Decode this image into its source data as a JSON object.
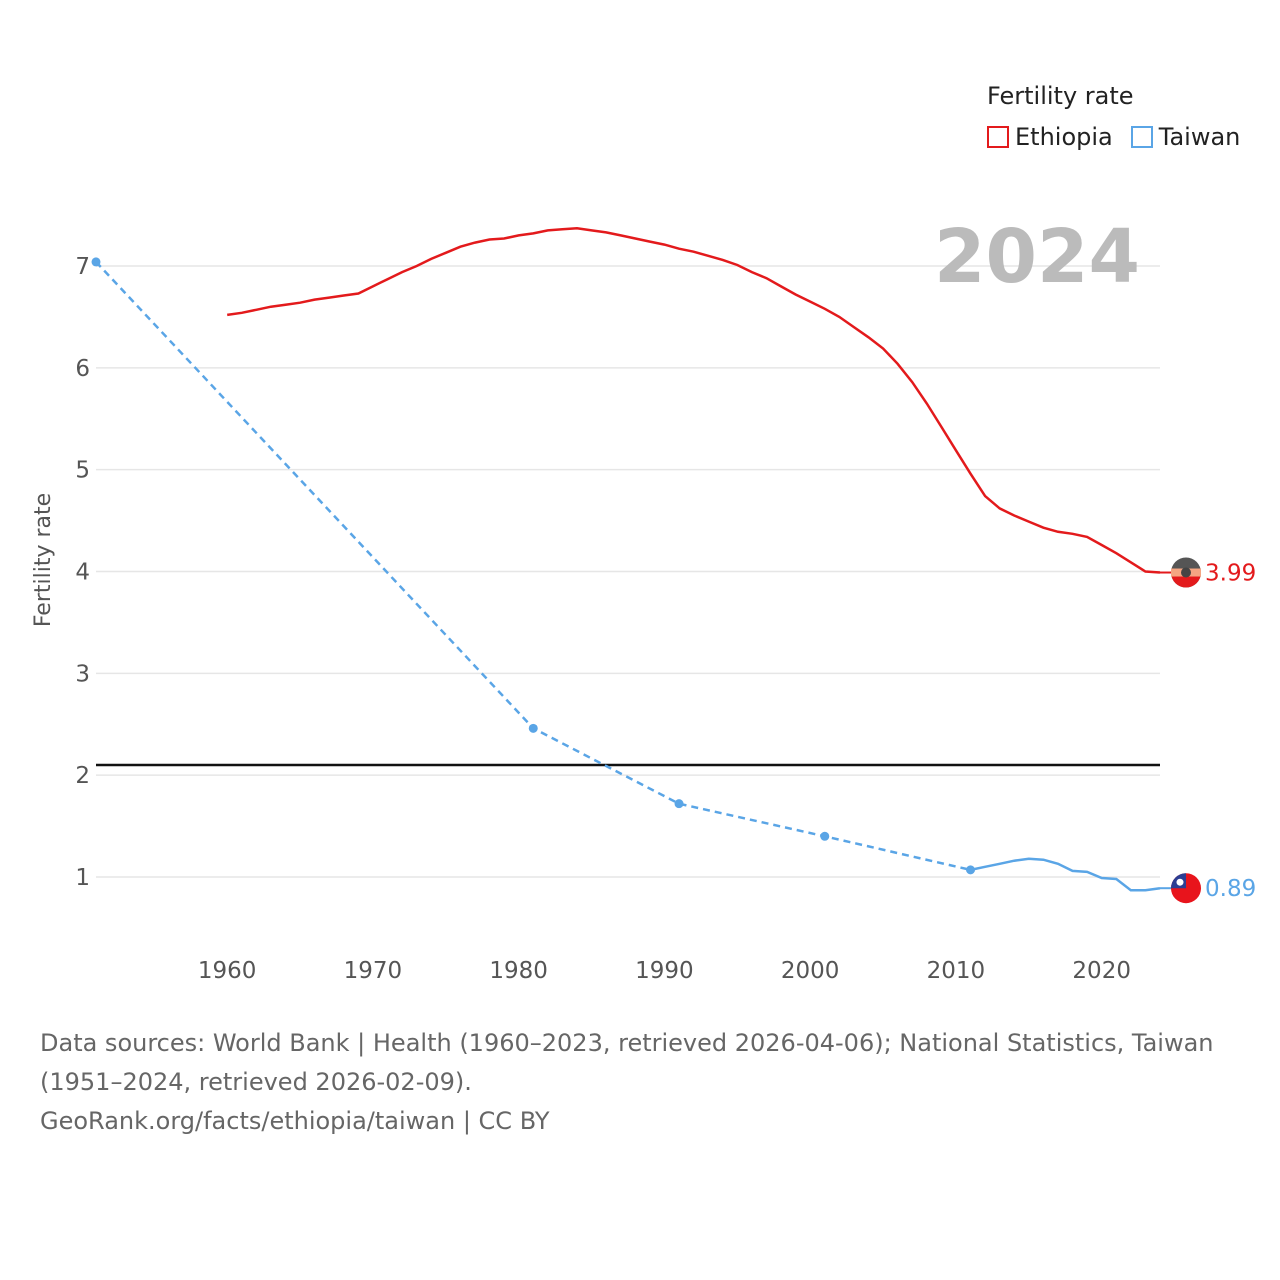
{
  "legend": {
    "title": "Fertility rate",
    "items": [
      {
        "label": "Ethiopia",
        "color": "#e31a1c"
      },
      {
        "label": "Taiwan",
        "color": "#5aa5e6"
      }
    ]
  },
  "chart_data": {
    "type": "line",
    "year_label": "2024",
    "ylabel": "Fertility rate",
    "xlim": [
      1951,
      2024
    ],
    "ylim": [
      0.5,
      7.5
    ],
    "x_ticks": [
      1960,
      1970,
      1980,
      1990,
      2000,
      2010,
      2020
    ],
    "y_ticks": [
      1,
      2,
      3,
      4,
      5,
      6,
      7
    ],
    "reference_line": {
      "value": 2.1,
      "color": "#111111"
    },
    "series": [
      {
        "name": "Ethiopia",
        "color": "#e31a1c",
        "end_label": "3.99",
        "points": [
          [
            1960,
            6.52
          ],
          [
            1961,
            6.54
          ],
          [
            1962,
            6.57
          ],
          [
            1963,
            6.6
          ],
          [
            1964,
            6.62
          ],
          [
            1965,
            6.64
          ],
          [
            1966,
            6.67
          ],
          [
            1967,
            6.69
          ],
          [
            1968,
            6.71
          ],
          [
            1969,
            6.73
          ],
          [
            1970,
            6.8
          ],
          [
            1971,
            6.87
          ],
          [
            1972,
            6.94
          ],
          [
            1973,
            7.0
          ],
          [
            1974,
            7.07
          ],
          [
            1975,
            7.13
          ],
          [
            1976,
            7.19
          ],
          [
            1977,
            7.23
          ],
          [
            1978,
            7.26
          ],
          [
            1979,
            7.27
          ],
          [
            1980,
            7.3
          ],
          [
            1981,
            7.32
          ],
          [
            1982,
            7.35
          ],
          [
            1983,
            7.36
          ],
          [
            1984,
            7.37
          ],
          [
            1985,
            7.35
          ],
          [
            1986,
            7.33
          ],
          [
            1987,
            7.3
          ],
          [
            1988,
            7.27
          ],
          [
            1989,
            7.24
          ],
          [
            1990,
            7.21
          ],
          [
            1991,
            7.17
          ],
          [
            1992,
            7.14
          ],
          [
            1993,
            7.1
          ],
          [
            1994,
            7.06
          ],
          [
            1995,
            7.01
          ],
          [
            1996,
            6.94
          ],
          [
            1997,
            6.88
          ],
          [
            1998,
            6.8
          ],
          [
            1999,
            6.72
          ],
          [
            2000,
            6.65
          ],
          [
            2001,
            6.58
          ],
          [
            2002,
            6.5
          ],
          [
            2003,
            6.4
          ],
          [
            2004,
            6.3
          ],
          [
            2005,
            6.19
          ],
          [
            2006,
            6.04
          ],
          [
            2007,
            5.86
          ],
          [
            2008,
            5.65
          ],
          [
            2009,
            5.42
          ],
          [
            2010,
            5.19
          ],
          [
            2011,
            4.96
          ],
          [
            2012,
            4.74
          ],
          [
            2013,
            4.62
          ],
          [
            2014,
            4.55
          ],
          [
            2015,
            4.49
          ],
          [
            2016,
            4.43
          ],
          [
            2017,
            4.39
          ],
          [
            2018,
            4.37
          ],
          [
            2019,
            4.34
          ],
          [
            2020,
            4.26
          ],
          [
            2021,
            4.18
          ],
          [
            2022,
            4.09
          ],
          [
            2023,
            4.0
          ],
          [
            2024,
            3.99
          ]
        ]
      },
      {
        "name": "Taiwan",
        "color": "#5aa5e6",
        "end_label": "0.89",
        "census_points": [
          [
            1951,
            7.04
          ],
          [
            1981,
            2.46
          ],
          [
            1991,
            1.72
          ],
          [
            2001,
            1.4
          ],
          [
            2011,
            1.07
          ]
        ],
        "points": [
          [
            2011,
            1.07
          ],
          [
            2012,
            1.1
          ],
          [
            2013,
            1.13
          ],
          [
            2014,
            1.16
          ],
          [
            2015,
            1.18
          ],
          [
            2016,
            1.17
          ],
          [
            2017,
            1.13
          ],
          [
            2018,
            1.06
          ],
          [
            2019,
            1.05
          ],
          [
            2020,
            0.99
          ],
          [
            2021,
            0.98
          ],
          [
            2022,
            0.87
          ],
          [
            2023,
            0.87
          ],
          [
            2024,
            0.89
          ]
        ]
      }
    ]
  },
  "footer": {
    "sources": "Data sources: World Bank | Health (1960–2023, retrieved 2026-04-06); National Statistics, Taiwan (1951–2024, retrieved 2026-02-09).",
    "attribution": "GeoRank.org/facts/ethiopia/taiwan | CC BY"
  }
}
